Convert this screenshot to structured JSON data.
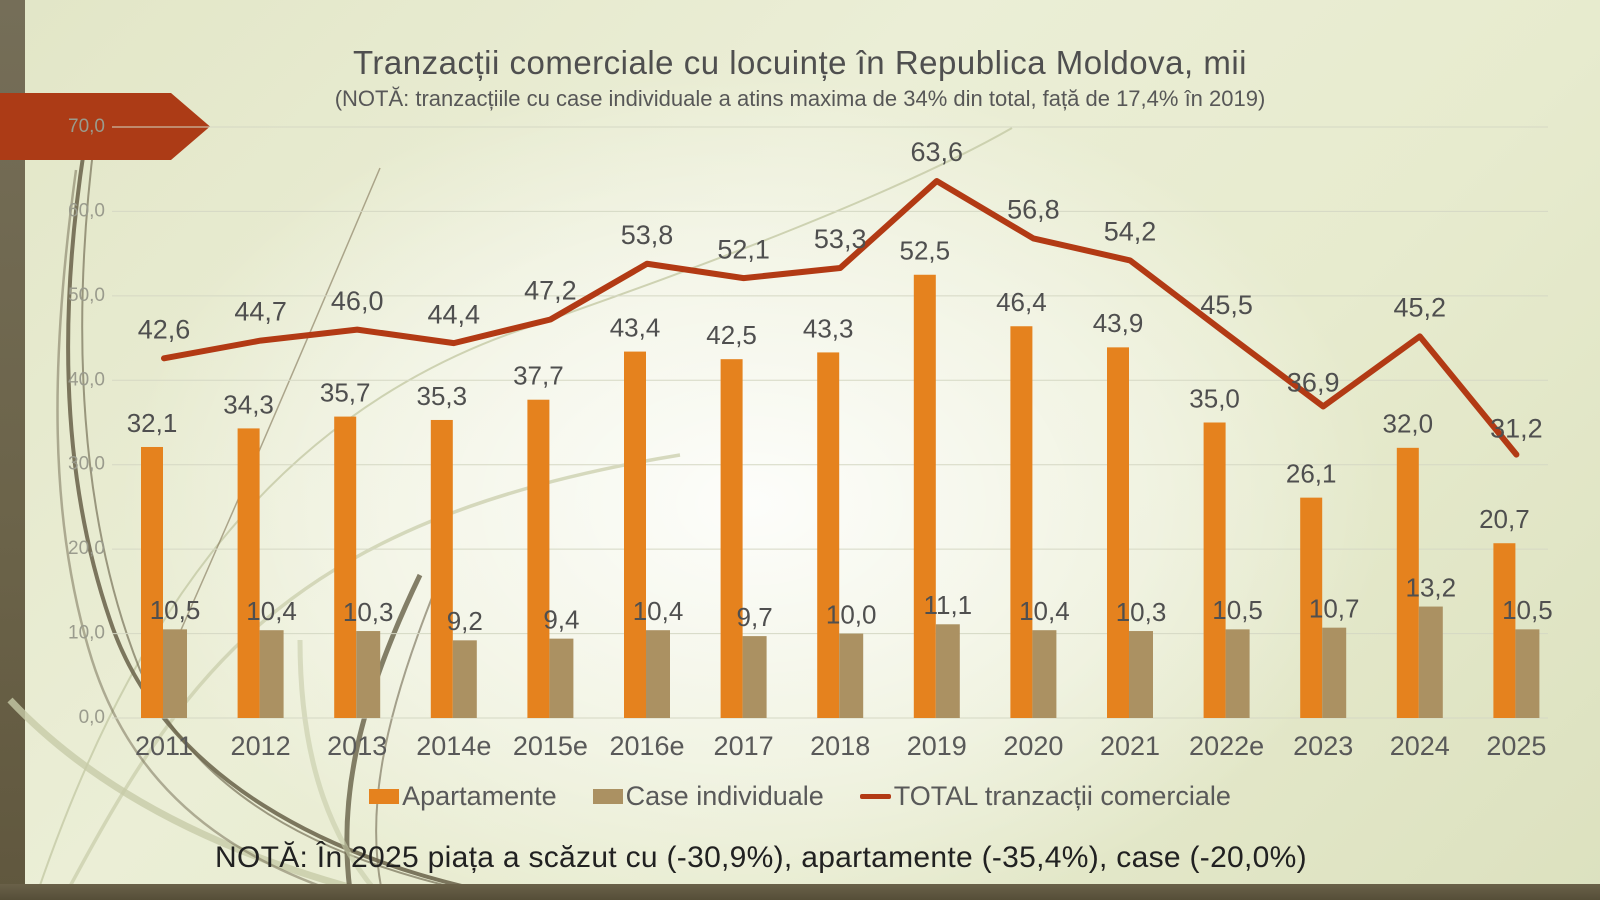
{
  "slide": {
    "title": "Tranzacții comerciale cu locuințe în Republica Moldova, mii",
    "subtitle": "(NOTĂ: tranzacțiile cu case individuale a atins maxima de 34% din total, față de 17,4% în 2019)",
    "note": "NOTĂ: În 2025 piața a scăzut cu (-30,9%), apartamente (-35,4%), case (-20,0%)"
  },
  "chart_data": {
    "type": "bar",
    "subtype": "grouped-bars-with-line",
    "categories": [
      "2011",
      "2012",
      "2013",
      "2014e",
      "2015e",
      "2016e",
      "2017",
      "2018",
      "2019",
      "2020",
      "2021",
      "2022e",
      "2023",
      "2024",
      "2025"
    ],
    "series": [
      {
        "name": "Apartamente",
        "type": "bar",
        "color": "#E5821E",
        "values": [
          32.1,
          34.3,
          35.7,
          35.3,
          37.7,
          43.4,
          42.5,
          43.3,
          52.5,
          46.4,
          43.9,
          35.0,
          26.1,
          32.0,
          20.7
        ]
      },
      {
        "name": "Case individuale",
        "type": "bar",
        "color": "#AB9162",
        "values": [
          10.5,
          10.4,
          10.3,
          9.2,
          9.4,
          10.4,
          9.7,
          10.0,
          11.1,
          10.4,
          10.3,
          10.5,
          10.7,
          13.2,
          10.5
        ]
      },
      {
        "name": "TOTAL tranzacții comerciale",
        "type": "line",
        "color": "#B23A14",
        "values": [
          42.6,
          44.7,
          46.0,
          44.4,
          47.2,
          53.8,
          52.1,
          53.3,
          63.6,
          56.8,
          54.2,
          45.5,
          36.9,
          45.2,
          31.2
        ]
      }
    ],
    "title": "Tranzacții comerciale cu locuințe în Republica Moldova, mii",
    "xlabel": "",
    "ylabel": "",
    "ylim": [
      0,
      70
    ],
    "ytick_step": 10,
    "ytick_labels": [
      "0,0",
      "10,0",
      "20,0",
      "30,0",
      "40,0",
      "50,0",
      "60,0",
      "70,0"
    ],
    "grid": "on",
    "legend_position": "bottom",
    "decimal_separator": ",",
    "data_labels": "on",
    "label_color": "#4F4F4F",
    "axis_label_color": "#9A9B8D",
    "xtick_color": "#595959",
    "gridline_color": "#D5D8C4"
  }
}
